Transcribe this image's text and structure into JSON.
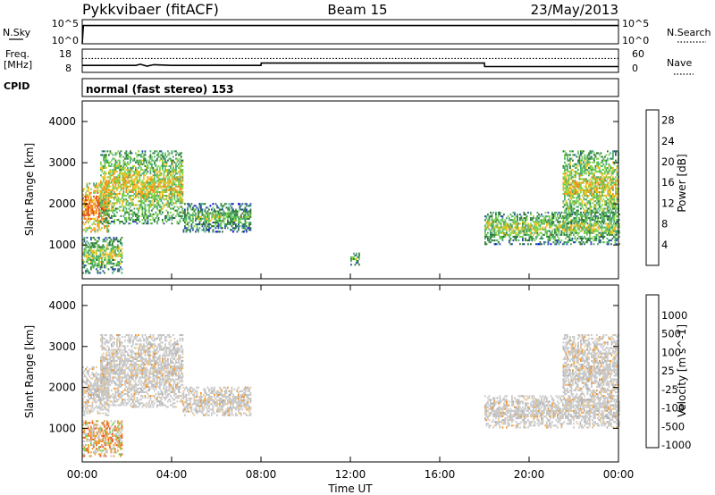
{
  "header": {
    "station": "Pykkvibaer (fitACF)",
    "beam": "Beam 15",
    "date": "23/May/2013"
  },
  "top_panels": {
    "nsky_label": "N.Sky",
    "nsky_ticks": [
      "10^5",
      "10^0"
    ],
    "nsearch_label": "N.Search",
    "freq_label_1": "Freq.",
    "freq_label_2": "[MHz]",
    "freq_ticks": [
      "18",
      "8"
    ],
    "nave_label": "Nave",
    "nave_ticks": [
      "60",
      "0"
    ],
    "cpid_label": "CPID",
    "cpid_text": "normal (fast stereo) 153"
  },
  "colors": {
    "power_scale": [
      "#0000ee",
      "#2a4aa8",
      "#2f7a3a",
      "#4aaa70",
      "#7ad24a",
      "#f0c020",
      "#f08a18",
      "#e84818",
      "#dd0000"
    ],
    "velocity_scale": [
      "#dd0000",
      "#ee5520",
      "#f09830",
      "#f0c88a",
      "#c8c8c8",
      "#b0b0b0",
      "#7ad05a",
      "#3a9a5a",
      "#2a6a9a",
      "#1a3aa8"
    ]
  },
  "chart_data": [
    {
      "type": "line",
      "title": "N.Sky / N.Search",
      "xlabel": "Time UT",
      "ylabel": "N.Sky",
      "y_scale": "log",
      "ylim": [
        1,
        100000
      ],
      "x_ticks": [
        "00:00",
        "04:00",
        "08:00",
        "12:00",
        "16:00",
        "20:00",
        "00:00"
      ],
      "series": [
        {
          "name": "N.Sky",
          "x": [
            0.0,
            0.05,
            0.5,
            2,
            6,
            10,
            14,
            18,
            20.4,
            22,
            24
          ],
          "y": [
            1,
            6000,
            6000,
            6000,
            6000,
            6000,
            6000,
            6000,
            6000,
            6000,
            6000
          ]
        }
      ]
    },
    {
      "type": "line",
      "title": "Freq. / Nave",
      "y_ticks_left": [
        "8",
        "18"
      ],
      "y_ticks_right": [
        "0",
        "60"
      ],
      "series": [
        {
          "name": "Freq.",
          "x": [
            0,
            2.4,
            2.6,
            2.9,
            3.2,
            4,
            8,
            8.01,
            18,
            18.01,
            24
          ],
          "y": [
            11.0,
            11.0,
            11.5,
            10.7,
            11.3,
            11.0,
            11.0,
            12.0,
            12.0,
            10.5,
            10.5
          ]
        },
        {
          "name": "Nave",
          "x": [
            0,
            24
          ],
          "y": [
            36,
            36
          ]
        }
      ]
    },
    {
      "type": "heatmap",
      "title": "Power",
      "xlabel": "Time UT",
      "ylabel": "Slant Range [km]",
      "x_ticks": [
        "00:00",
        "04:00",
        "08:00",
        "12:00",
        "16:00",
        "20:00",
        "00:00"
      ],
      "xlim": [
        0,
        24
      ],
      "y_ticks": [
        1000,
        2000,
        3000,
        4000
      ],
      "ylim": [
        180,
        4500
      ],
      "colorbar": {
        "label": "Power [dB]",
        "ticks": [
          4,
          8,
          12,
          16,
          20,
          24,
          28
        ],
        "range": [
          0,
          30
        ]
      },
      "regions": [
        {
          "t": [
            0.0,
            1.2
          ],
          "r": [
            1300,
            2500
          ],
          "value": 16
        },
        {
          "t": [
            0.0,
            1.8
          ],
          "r": [
            300,
            1200
          ],
          "value": 8
        },
        {
          "t": [
            0.8,
            4.5
          ],
          "r": [
            1500,
            3300
          ],
          "value": 10
        },
        {
          "t": [
            4.5,
            7.5
          ],
          "r": [
            1300,
            2000
          ],
          "value": 6
        },
        {
          "t": [
            12.0,
            12.4
          ],
          "r": [
            500,
            800
          ],
          "value": 6
        },
        {
          "t": [
            18.0,
            24.0
          ],
          "r": [
            1000,
            1800
          ],
          "value": 8
        },
        {
          "t": [
            21.5,
            24.0
          ],
          "r": [
            1500,
            3300
          ],
          "value": 10
        }
      ]
    },
    {
      "type": "heatmap",
      "title": "Velocity",
      "xlabel": "Time UT",
      "ylabel": "Slant Range [km]",
      "x_ticks": [
        "00:00",
        "04:00",
        "08:00",
        "12:00",
        "16:00",
        "20:00",
        "00:00"
      ],
      "xlim": [
        0,
        24
      ],
      "y_ticks": [
        1000,
        2000,
        3000,
        4000
      ],
      "ylim": [
        180,
        4500
      ],
      "colorbar": {
        "label": "Velocity [m s^-1]",
        "ticks": [
          "1000",
          "500",
          "100",
          "25",
          "-25",
          "-100",
          "-500",
          "-1000"
        ]
      },
      "regions": [
        {
          "t": [
            0.0,
            1.2
          ],
          "r": [
            1300,
            2500
          ],
          "value": 0
        },
        {
          "t": [
            0.0,
            1.8
          ],
          "r": [
            300,
            1200
          ],
          "value": -60
        },
        {
          "t": [
            0.8,
            4.5
          ],
          "r": [
            1500,
            3300
          ],
          "value": 0
        },
        {
          "t": [
            4.5,
            7.5
          ],
          "r": [
            1300,
            2000
          ],
          "value": 0
        },
        {
          "t": [
            18.0,
            24.0
          ],
          "r": [
            1000,
            1800
          ],
          "value": 0
        },
        {
          "t": [
            21.5,
            24.0
          ],
          "r": [
            1500,
            3300
          ],
          "value": 0
        }
      ]
    }
  ]
}
